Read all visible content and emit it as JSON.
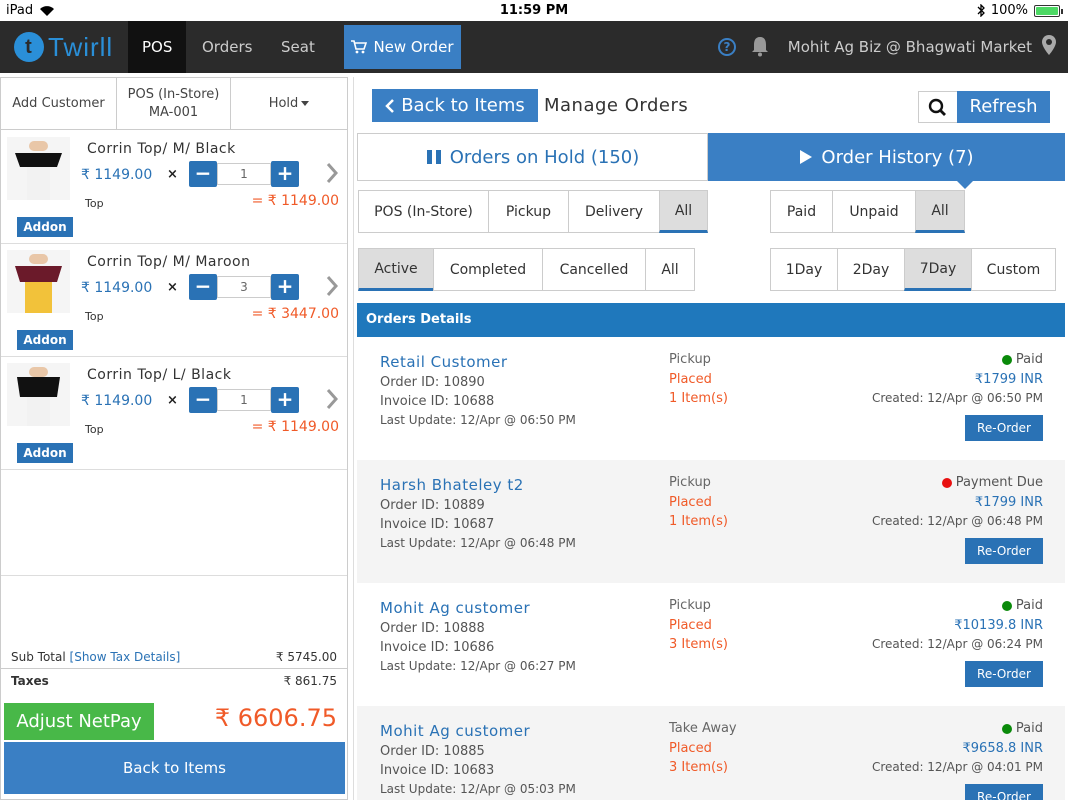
{
  "status_bar": {
    "device": "iPad",
    "time": "11:59 PM",
    "battery": "100%",
    "battery_level": 1.0
  },
  "nav": {
    "logo_text": "Twirll",
    "tabs": [
      {
        "label": "POS"
      },
      {
        "label": "Orders"
      },
      {
        "label": "Seat"
      }
    ],
    "new_order_label": "New Order",
    "store_name": "Mohit Ag Biz @ Bhagwati Market"
  },
  "cart": {
    "tabs": {
      "add_customer": "Add Customer",
      "pos_line1": "POS (In-Store)",
      "pos_line2": "MA-001",
      "hold": "Hold"
    },
    "items": [
      {
        "name": "Corrin Top/ M/ Black",
        "price": "₹ 1149.00",
        "qty": "1",
        "category": "Top",
        "total": "= ₹ 1149.00",
        "addon": "Addon",
        "color": "#111111"
      },
      {
        "name": "Corrin Top/ M/ Maroon",
        "price": "₹ 1149.00",
        "qty": "3",
        "category": "Top",
        "total": "= ₹ 3447.00",
        "addon": "Addon",
        "color": "#6b1a2a"
      },
      {
        "name": "Corrin Top/ L/ Black",
        "price": "₹ 1149.00",
        "qty": "1",
        "category": "Top",
        "total": "= ₹ 1149.00",
        "addon": "Addon",
        "color": "#111111"
      }
    ],
    "times_symbol": "×",
    "minus": "−",
    "plus": "+",
    "sub_total_label": "Sub Total",
    "tax_link": "[Show Tax Details]",
    "sub_total": "₹ 5745.00",
    "taxes_label": "Taxes",
    "taxes": "₹ 861.75",
    "adjust_label": "Adjust NetPay",
    "netpay": "₹ 6606.75",
    "back_label": "Back to Items"
  },
  "manage": {
    "back_label": "Back to Items",
    "title": "Manage Orders",
    "refresh_label": "Refresh",
    "hold_tab": "Orders on Hold (150)",
    "history_tab": "Order History (7)",
    "channel_filters": [
      "POS (In-Store)",
      "Pickup",
      "Delivery",
      "All"
    ],
    "payment_filters": [
      "Paid",
      "Unpaid",
      "All"
    ],
    "state_filters": [
      "Active",
      "Completed",
      "Cancelled",
      "All"
    ],
    "range_filters": [
      "1Day",
      "2Day",
      "7Day",
      "Custom"
    ],
    "details_header": "Orders Details",
    "reorder_label": "Re-Order",
    "orders": [
      {
        "customer": "Retail Customer",
        "order_id": "Order ID: 10890",
        "invoice_id": "Invoice ID: 10688",
        "last_update": "Last Update: 12/Apr @ 06:50 PM",
        "type": "Pickup",
        "status": "Placed",
        "items": "1 Item(s)",
        "payment": "Paid",
        "payment_color": "#0a8a0a",
        "amount": "₹1799 INR",
        "created": "Created: 12/Apr @ 06:50 PM"
      },
      {
        "customer": "Harsh Bhateley t2",
        "order_id": "Order ID: 10889",
        "invoice_id": "Invoice ID: 10687",
        "last_update": "Last Update: 12/Apr @ 06:48 PM",
        "type": "Pickup",
        "status": "Placed",
        "items": "1 Item(s)",
        "payment": "Payment Due",
        "payment_color": "#e81010",
        "amount": "₹1799 INR",
        "created": "Created: 12/Apr @ 06:48 PM"
      },
      {
        "customer": "Mohit Ag customer",
        "order_id": "Order ID: 10888",
        "invoice_id": "Invoice ID: 10686",
        "last_update": "Last Update: 12/Apr @ 06:27 PM",
        "type": "Pickup",
        "status": "Placed",
        "items": "3 Item(s)",
        "payment": "Paid",
        "payment_color": "#0a8a0a",
        "amount": "₹10139.8 INR",
        "created": "Created: 12/Apr @ 06:24 PM"
      },
      {
        "customer": "Mohit Ag customer",
        "order_id": "Order ID: 10885",
        "invoice_id": "Invoice ID: 10683",
        "last_update": "Last Update: 12/Apr @ 05:03 PM",
        "type": "Take Away",
        "status": "Placed",
        "items": "3 Item(s)",
        "payment": "Paid",
        "payment_color": "#0a8a0a",
        "amount": "₹9658.8 INR",
        "created": "Created: 12/Apr @ 04:01 PM"
      }
    ]
  },
  "colors": {
    "accent": "#3a7fc4",
    "orange": "#f05a28",
    "green": "#48b848",
    "nav_bg": "#2b2b2b"
  }
}
